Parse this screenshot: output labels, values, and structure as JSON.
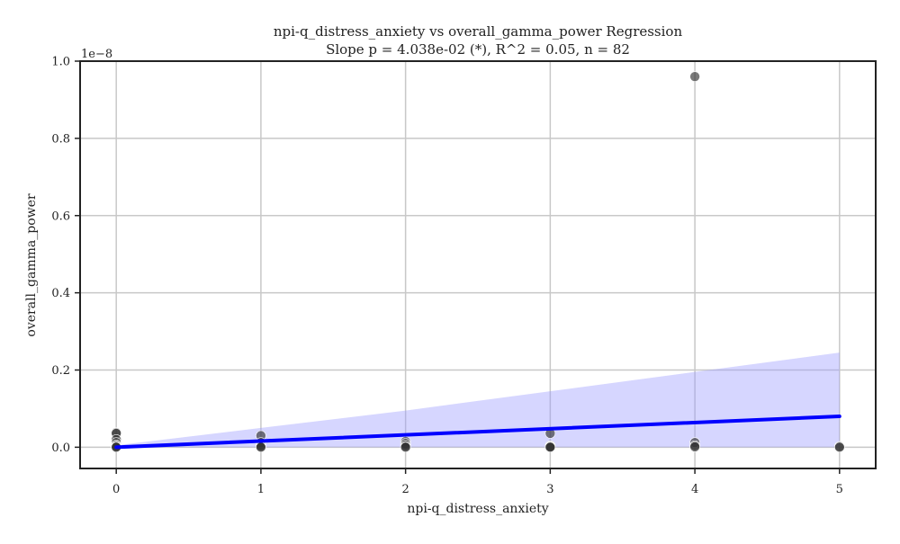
{
  "chart_data": {
    "type": "scatter",
    "title": "npi-q_distress_anxiety vs overall_gamma_power Regression",
    "subtitle": "Slope p = 4.038e-02 (*), R^2 = 0.05, n = 82",
    "xlabel": "npi-q_distress_anxiety",
    "ylabel": "overall_gamma_power",
    "y_offset_label": "1e−8",
    "xlim": [
      -0.25,
      5.25
    ],
    "ylim": [
      -0.055,
      1.0
    ],
    "y_multiplier": 1e-08,
    "x_ticks": [
      0,
      1,
      2,
      3,
      4,
      5
    ],
    "x_tick_labels": [
      "0",
      "1",
      "2",
      "3",
      "4",
      "5"
    ],
    "y_ticks": [
      0.0,
      0.2,
      0.4,
      0.6,
      0.8,
      1.0
    ],
    "y_tick_labels": [
      "0.0",
      "0.2",
      "0.4",
      "0.6",
      "0.8",
      "1.0"
    ],
    "grid": true,
    "points": [
      {
        "x": 0,
        "y": 0.038
      },
      {
        "x": 0,
        "y": 0.036
      },
      {
        "x": 0,
        "y": 0.02
      },
      {
        "x": 0,
        "y": 0.012
      },
      {
        "x": 0,
        "y": 0.006
      },
      {
        "x": 0,
        "y": 0.003
      },
      {
        "x": 0,
        "y": 0.001
      },
      {
        "x": 0,
        "y": 0.0
      },
      {
        "x": 1,
        "y": 0.03
      },
      {
        "x": 1,
        "y": 0.012
      },
      {
        "x": 1,
        "y": 0.005
      },
      {
        "x": 1,
        "y": 0.002
      },
      {
        "x": 1,
        "y": 0.0
      },
      {
        "x": 2,
        "y": 0.015
      },
      {
        "x": 2,
        "y": 0.01
      },
      {
        "x": 2,
        "y": 0.006
      },
      {
        "x": 2,
        "y": 0.002
      },
      {
        "x": 2,
        "y": 0.0
      },
      {
        "x": 3,
        "y": 0.036
      },
      {
        "x": 3,
        "y": 0.004
      },
      {
        "x": 3,
        "y": 0.002
      },
      {
        "x": 3,
        "y": 0.001
      },
      {
        "x": 3,
        "y": 0.0
      },
      {
        "x": 4,
        "y": 0.96
      },
      {
        "x": 4,
        "y": 0.012
      },
      {
        "x": 4,
        "y": 0.004
      },
      {
        "x": 4,
        "y": 0.001
      },
      {
        "x": 5,
        "y": 0.002
      },
      {
        "x": 5,
        "y": 0.0
      }
    ],
    "point_color": "#333333",
    "regression_line": {
      "x": [
        0,
        5
      ],
      "y": [
        0.0,
        0.08
      ],
      "color": "#0000ff"
    },
    "confidence_band": {
      "x": [
        0,
        1,
        2,
        3,
        4,
        5
      ],
      "lower": [
        0.0,
        0.0,
        0.0,
        0.0,
        0.0,
        0.0
      ],
      "upper": [
        0.005,
        0.05,
        0.095,
        0.145,
        0.195,
        0.245
      ],
      "color": "#9999ff"
    }
  }
}
